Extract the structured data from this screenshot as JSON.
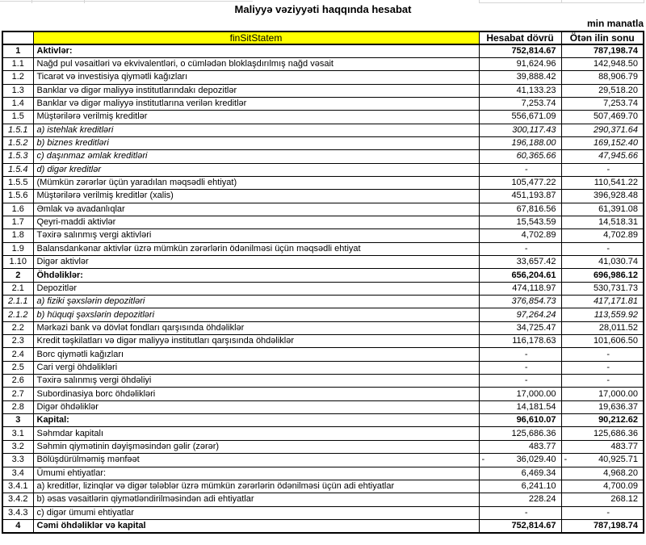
{
  "header": {
    "title": "Maliyyə vəziyyəti haqqında hesabat",
    "unit_note": "min manatla"
  },
  "table": {
    "columns": {
      "name_header": "finSitStatem",
      "period_header": "Hesabat dövrü",
      "prev_header": "Ötən ilin sonu"
    },
    "rows": [
      {
        "num": "1",
        "label": "Aktivlər:",
        "v1": "752,814.67",
        "v2": "787,198.74",
        "style": "section"
      },
      {
        "num": "1.1",
        "label": "Nağd pul vəsaitləri və  ekvivalentləri, o cümlədən bloklaşdırılmış nağd vəsait",
        "v1": "91,624.96",
        "v2": "142,948.50"
      },
      {
        "num": "1.2",
        "label": "Ticarət və investisiya qiymətli kağızları",
        "v1": "39,888.42",
        "v2": "88,906.79"
      },
      {
        "num": "1.3",
        "label": "Banklar və digər maliyyə institutlarındakı depozitlər",
        "v1": "41,133.23",
        "v2": "29,518.20"
      },
      {
        "num": "1.4",
        "label": "Banklar və digər maliyyə institutlarına verilən kreditlər",
        "v1": "7,253.74",
        "v2": "7,253.74"
      },
      {
        "num": "1.5",
        "label": "Müştərilərə verilmiş kreditlər",
        "v1": "556,671.09",
        "v2": "507,469.70"
      },
      {
        "num": "1.5.1",
        "label": "a) istehlak kreditləri",
        "v1": "300,117.43",
        "v2": "290,371.64",
        "style": "sub"
      },
      {
        "num": "1.5.2",
        "label": "b) biznes kreditləri",
        "v1": "196,188.00",
        "v2": "169,152.40",
        "style": "sub"
      },
      {
        "num": "1.5.3",
        "label": "c) daşınmaz əmlak kreditləri",
        "v1": "60,365.66",
        "v2": "47,945.66",
        "style": "sub"
      },
      {
        "num": "1.5.4",
        "label": "d) digər kreditlər",
        "v1": "-",
        "v2": "-",
        "style": "sub"
      },
      {
        "num": "1.5.5",
        "label": "(Mümkün zərərlər üçün yaradılan məqsədli ehtiyat)",
        "v1": "105,477.22",
        "v2": "110,541.22"
      },
      {
        "num": "1.5.6",
        "label": "Müştərilərə verilmiş kreditlər (xalis)",
        "v1": "451,193.87",
        "v2": "396,928.48"
      },
      {
        "num": "1.6",
        "label": "Əmlak və avadanlıqlar",
        "v1": "67,816.56",
        "v2": "61,391.08"
      },
      {
        "num": "1.7",
        "label": "Qeyri-maddi aktivlər",
        "v1": "15,543.59",
        "v2": "14,518.31"
      },
      {
        "num": "1.8",
        "label": "Təxirə salınmış vergi aktivləri",
        "v1": "4,702.89",
        "v2": "4,702.89"
      },
      {
        "num": "1.9",
        "label": "Balansdankənar aktivlər üzrə mümkün zərərlərin ödənilməsi üçün məqsədli ehtiyat",
        "v1": "-",
        "v2": "-"
      },
      {
        "num": "1.10",
        "label": "Digər aktivlər",
        "v1": "33,657.42",
        "v2": "41,030.74"
      },
      {
        "num": "2",
        "label": "Öhdəliklər:",
        "v1": "656,204.61",
        "v2": "696,986.12",
        "style": "section"
      },
      {
        "num": "2.1",
        "label": "Depozitlər",
        "v1": "474,118.97",
        "v2": "530,731.73"
      },
      {
        "num": "2.1.1",
        "label": "a) fiziki şəxslərin depozitləri",
        "v1": "376,854.73",
        "v2": "417,171.81",
        "style": "sub"
      },
      {
        "num": "2.1.2",
        "label": "b) hüquqi şəxslərin depozitləri",
        "v1": "97,264.24",
        "v2": "113,559.92",
        "style": "sub"
      },
      {
        "num": "2.2",
        "label": "Mərkəzi bank və dövlət fondları qarşısında öhdəliklər",
        "v1": "34,725.47",
        "v2": "28,011.52"
      },
      {
        "num": "2.3",
        "label": "Kredit təşkilatları və digər maliyyə institutları qarşısında öhdəliklər",
        "v1": "116,178.63",
        "v2": "101,606.50"
      },
      {
        "num": "2.4",
        "label": "Borc qiymətli kağızları",
        "v1": "-",
        "v2": "-"
      },
      {
        "num": "2.5",
        "label": "Cari vergi öhdəlikləri",
        "v1": "-",
        "v2": "-"
      },
      {
        "num": "2.6",
        "label": "Təxirə salınmış vergi öhdəliyi",
        "v1": "-",
        "v2": "-"
      },
      {
        "num": "2.7",
        "label": "Subordinasiya borc öhdəlikləri",
        "v1": "17,000.00",
        "v2": "17,000.00"
      },
      {
        "num": "2.8",
        "label": "Digər öhdəliklər",
        "v1": "14,181.54",
        "v2": "19,636.37"
      },
      {
        "num": "3",
        "label": "Kapital:",
        "v1": "96,610.07",
        "v2": "90,212.62",
        "style": "section"
      },
      {
        "num": "3.1",
        "label": "Səhmdar kapitalı",
        "v1": "125,686.36",
        "v2": "125,686.36"
      },
      {
        "num": "3.2",
        "label": "Səhmin qiymətinin dəyişməsindən gəlir (zərər)",
        "v1": "483.77",
        "v2": "483.77"
      },
      {
        "num": "3.3",
        "label": "Bölüşdürülməmiş mənfəət",
        "v1": "36,029.40",
        "v2": "40,925.71",
        "neg1": true,
        "neg2": true
      },
      {
        "num": "3.4",
        "label": "Ümumi ehtiyatlar:",
        "v1": "6,469.34",
        "v2": "4,968.20"
      },
      {
        "num": "3.4.1",
        "label": "a) kreditlər, lizinqlər və digər tələblər üzrə mümkün zərərlərin ödənilməsi üçün adi ehtiyatlar",
        "v1": "6,241.10",
        "v2": "4,700.09"
      },
      {
        "num": "3.4.2",
        "label": "b) əsas vəsaitlərin qiymətləndirilməsindən adi ehtiyatlar",
        "v1": "228.24",
        "v2": "268.12"
      },
      {
        "num": "3.4.3",
        "label": "c) digər ümumi ehtiyatlar",
        "v1": "-",
        "v2": "-"
      },
      {
        "num": "4",
        "label": "Cəmi öhdəliklər və kapital",
        "v1": "752,814.67",
        "v2": "787,198.74",
        "style": "section"
      }
    ]
  },
  "colors": {
    "header_highlight": "#ffff00",
    "border": "#000000",
    "background": "#ffffff"
  }
}
